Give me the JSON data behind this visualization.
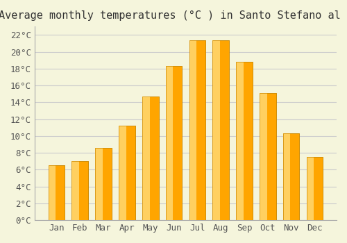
{
  "title": "Average monthly temperatures (°C ) in Santo Stefano al Mare",
  "months": [
    "Jan",
    "Feb",
    "Mar",
    "Apr",
    "May",
    "Jun",
    "Jul",
    "Aug",
    "Sep",
    "Oct",
    "Nov",
    "Dec"
  ],
  "temperatures": [
    6.5,
    7.0,
    8.6,
    11.2,
    14.7,
    18.3,
    21.4,
    21.4,
    18.8,
    15.1,
    10.3,
    7.5
  ],
  "bar_color": "#FFA500",
  "bar_edge_color": "#CC8800",
  "ylim": [
    0,
    23
  ],
  "yticks": [
    0,
    2,
    4,
    6,
    8,
    10,
    12,
    14,
    16,
    18,
    20,
    22
  ],
  "background_color": "#F5F5DC",
  "grid_color": "#CCCCCC",
  "title_fontsize": 11,
  "tick_fontsize": 9,
  "font_family": "monospace"
}
